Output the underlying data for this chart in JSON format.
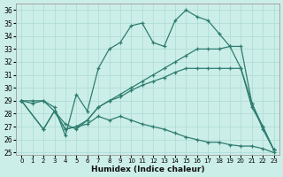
{
  "background_color": "#cceee8",
  "grid_color": "#b0ddd8",
  "line_color": "#2e7d70",
  "xlabel": "Humidex (Indice chaleur)",
  "xlim": [
    -0.5,
    23.5
  ],
  "ylim": [
    24.8,
    36.5
  ],
  "yticks": [
    25,
    26,
    27,
    28,
    29,
    30,
    31,
    32,
    33,
    34,
    35,
    36
  ],
  "xticks": [
    0,
    1,
    2,
    3,
    4,
    5,
    6,
    7,
    8,
    9,
    10,
    11,
    12,
    13,
    14,
    15,
    16,
    17,
    18,
    19,
    20,
    21,
    22,
    23
  ],
  "line1_x": [
    0,
    1,
    2,
    3,
    4,
    5,
    6,
    7,
    8,
    9,
    10,
    11,
    12,
    13,
    14,
    15,
    16,
    17,
    18,
    19,
    20,
    21,
    22,
    23
  ],
  "line1_y": [
    29,
    28.8,
    29,
    28.5,
    26.3,
    29.5,
    28.2,
    31.5,
    33.0,
    33.5,
    34.8,
    35.0,
    33.5,
    33.2,
    35.2,
    36.0,
    35.5,
    35.2,
    34.2,
    33.2,
    31.5,
    28.8,
    26.8,
    25.2
  ],
  "line2_x": [
    0,
    1,
    2,
    3,
    4,
    5,
    6,
    7,
    8,
    9,
    10,
    11,
    12,
    13,
    14,
    15,
    16,
    17,
    18,
    19,
    20,
    21,
    22,
    23
  ],
  "line2_y": [
    29,
    29,
    29,
    28.2,
    27.2,
    26.8,
    27.5,
    28.5,
    29.0,
    29.3,
    29.8,
    30.2,
    30.5,
    30.8,
    31.2,
    31.5,
    31.5,
    31.5,
    31.5,
    31.5,
    31.5,
    28.5,
    27.0,
    25.2
  ],
  "line3_x": [
    0,
    2,
    3,
    4,
    5,
    6,
    7,
    8,
    9,
    10,
    11,
    12,
    13,
    14,
    15,
    16,
    17,
    18,
    19,
    20,
    21,
    22,
    23
  ],
  "line3_y": [
    29,
    26.8,
    28.2,
    26.8,
    27.0,
    27.5,
    28.5,
    29.0,
    29.5,
    30.0,
    30.5,
    31.0,
    31.5,
    32.0,
    32.5,
    33.0,
    33.0,
    33.0,
    33.2,
    33.2,
    28.8,
    27.0,
    25.2
  ],
  "line4_x": [
    0,
    2,
    3,
    4,
    5,
    6,
    7,
    8,
    9,
    10,
    11,
    12,
    13,
    14,
    15,
    16,
    17,
    18,
    19,
    20,
    21,
    22,
    23
  ],
  "line4_y": [
    29,
    26.8,
    28.2,
    26.8,
    27.0,
    27.2,
    27.8,
    27.5,
    27.8,
    27.5,
    27.2,
    27.0,
    26.8,
    26.5,
    26.2,
    26.0,
    25.8,
    25.8,
    25.6,
    25.5,
    25.5,
    25.3,
    25.0
  ]
}
